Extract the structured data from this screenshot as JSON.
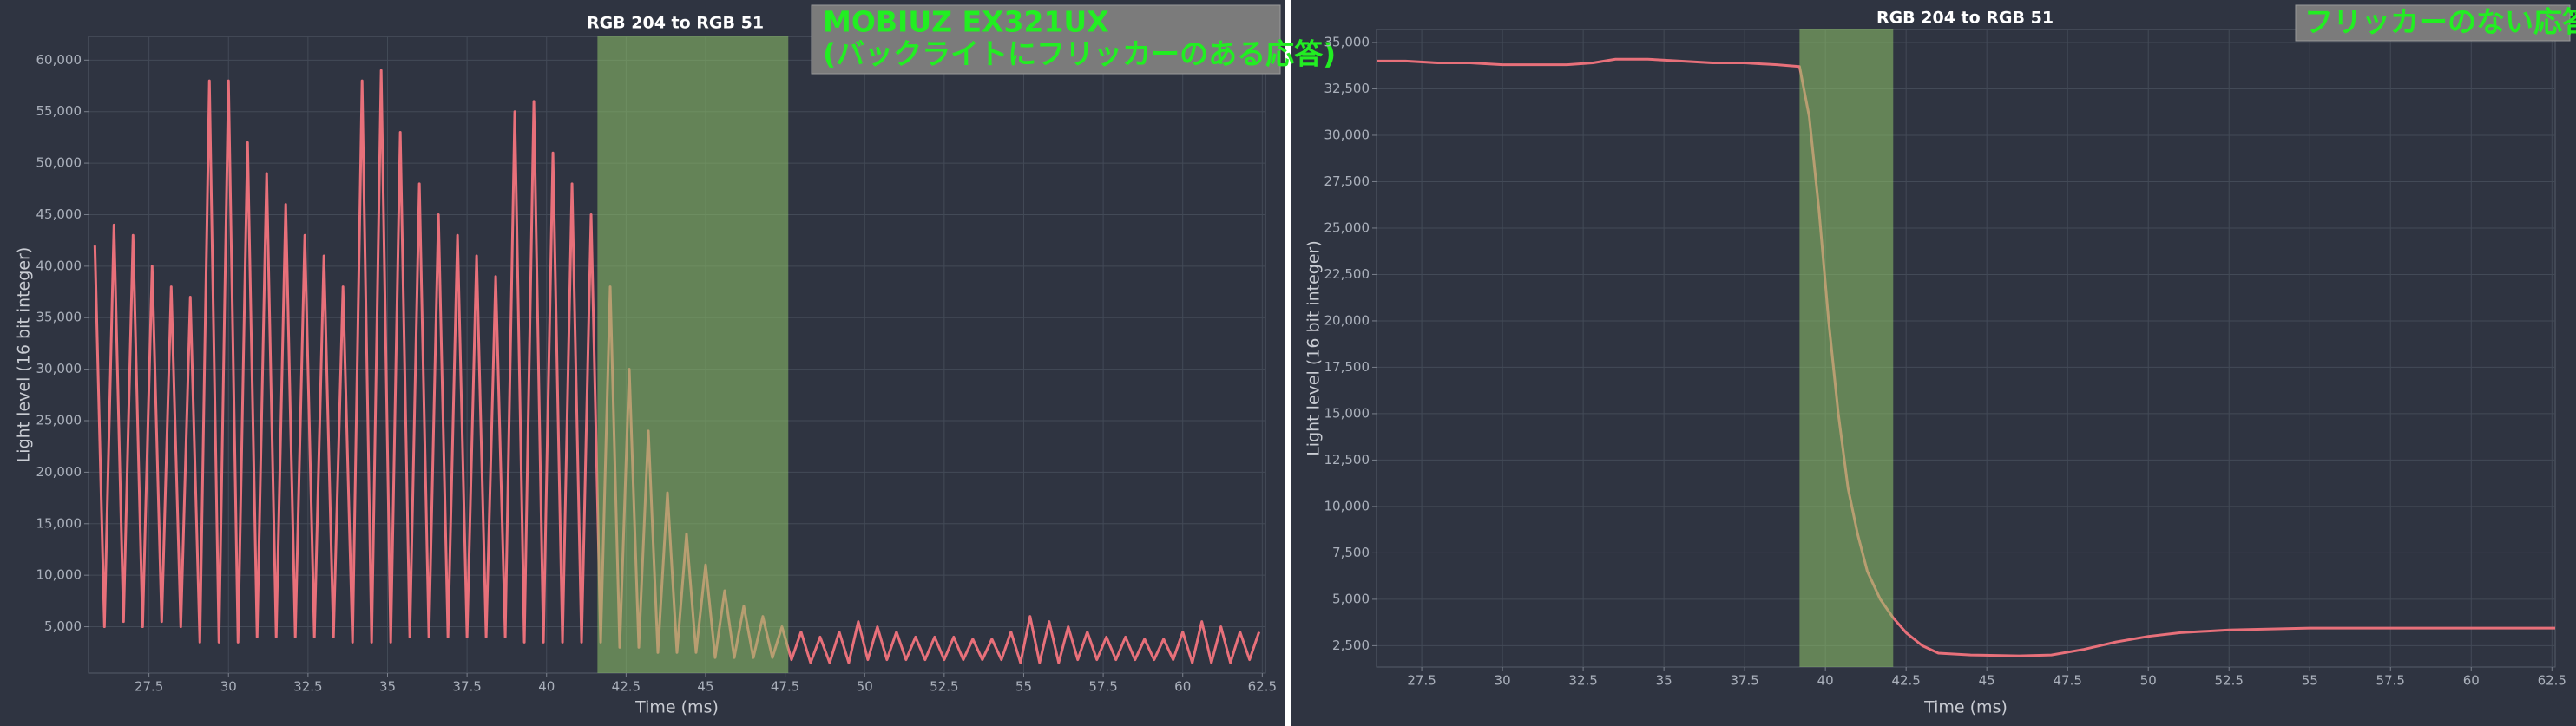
{
  "chart_data": [
    {
      "type": "line",
      "title": "RGB 204 to RGB 51",
      "annotation": [
        "MOBIUZ EX321UX",
        "(バックライトにフリッカーのある応答)"
      ],
      "xlabel": "Time (ms)",
      "ylabel": "Light level (16 bit integer)",
      "color": "#e8707a",
      "highlight": [
        41.6,
        47.6
      ],
      "highlight_color": "#8fc56a",
      "grid": true,
      "xlim": [
        25.6,
        62.6
      ],
      "ylim": [
        500,
        62300
      ],
      "xticks": [
        27.5,
        30,
        32.5,
        35,
        37.5,
        40,
        42.5,
        45,
        47.5,
        50,
        52.5,
        55,
        57.5,
        60,
        62.5
      ],
      "yticks": [
        {
          "value": 5000,
          "label": "5,000"
        },
        {
          "value": 10000,
          "label": "10,000"
        },
        {
          "value": 15000,
          "label": "15,000"
        },
        {
          "value": 20000,
          "label": "20,000"
        },
        {
          "value": 25000,
          "label": "25,000"
        },
        {
          "value": 30000,
          "label": "30,000"
        },
        {
          "value": 35000,
          "label": "35,000"
        },
        {
          "value": 40000,
          "label": "40,000"
        },
        {
          "value": 45000,
          "label": "45,000"
        },
        {
          "value": 50000,
          "label": "50,000"
        },
        {
          "value": 55000,
          "label": "55,000"
        },
        {
          "value": 60000,
          "label": "60,000"
        }
      ],
      "x": [
        25.8,
        26.1,
        26.4,
        26.7,
        27,
        27.3,
        27.6,
        27.9,
        28.2,
        28.5,
        28.8,
        29.1,
        29.4,
        29.7,
        30,
        30.3,
        30.6,
        30.9,
        31.2,
        31.5,
        31.8,
        32.1,
        32.4,
        32.7,
        33,
        33.3,
        33.6,
        33.9,
        34.2,
        34.5,
        34.8,
        35.1,
        35.4,
        35.7,
        36,
        36.3,
        36.6,
        36.9,
        37.2,
        37.5,
        37.8,
        38.1,
        38.4,
        38.7,
        39,
        39.3,
        39.6,
        39.9,
        40.2,
        40.5,
        40.8,
        41.1,
        41.4,
        41.7,
        42,
        42.3,
        42.6,
        42.9,
        43.2,
        43.5,
        43.8,
        44.1,
        44.4,
        44.7,
        45,
        45.3,
        45.6,
        45.9,
        46.2,
        46.5,
        46.8,
        47.1,
        47.4,
        47.7,
        48,
        48.3,
        48.6,
        48.9,
        49.2,
        49.5,
        49.8,
        50.1,
        50.4,
        50.7,
        51,
        51.3,
        51.6,
        51.9,
        52.2,
        52.5,
        52.8,
        53.1,
        53.4,
        53.7,
        54,
        54.3,
        54.6,
        54.9,
        55.2,
        55.5,
        55.8,
        56.1,
        56.4,
        56.7,
        57,
        57.3,
        57.6,
        57.9,
        58.2,
        58.5,
        58.8,
        59.1,
        59.4,
        59.7,
        60,
        60.3,
        60.6,
        60.9,
        61.2,
        61.5,
        61.8,
        62.1,
        62.4
      ],
      "values": [
        42000,
        5000,
        44000,
        5500,
        43000,
        5000,
        40000,
        5500,
        38000,
        5000,
        37000,
        3500,
        58000,
        3500,
        58000,
        3500,
        52000,
        4000,
        49000,
        4000,
        46000,
        4000,
        43000,
        4000,
        41000,
        4000,
        38000,
        3500,
        58000,
        3500,
        59000,
        3500,
        53000,
        4000,
        48000,
        4000,
        45000,
        4000,
        43000,
        4000,
        41000,
        4000,
        39000,
        4000,
        55000,
        3500,
        56000,
        3500,
        51000,
        3500,
        48000,
        3500,
        45000,
        3500,
        38000,
        3000,
        30000,
        3000,
        24000,
        2500,
        18000,
        2500,
        14000,
        2500,
        11000,
        2000,
        8500,
        2000,
        7000,
        2000,
        6000,
        2000,
        5000,
        1800,
        4500,
        1500,
        4000,
        1500,
        4500,
        1500,
        5500,
        1800,
        5000,
        1800,
        4500,
        1800,
        4000,
        1800,
        4000,
        1800,
        4000,
        1800,
        3800,
        1800,
        3800,
        1800,
        4500,
        1500,
        6000,
        1500,
        5500,
        1500,
        5000,
        1800,
        4500,
        1800,
        4000,
        1800,
        4000,
        1800,
        3800,
        1800,
        3800,
        1800,
        4500,
        1500,
        5500,
        1500,
        5000,
        1500,
        4500,
        1800,
        4500
      ]
    },
    {
      "type": "line",
      "title": "RGB 204 to RGB 51",
      "annotation": [
        "フリッカーのない応答"
      ],
      "xlabel": "Time (ms)",
      "ylabel": "Light level (16 bit integer)",
      "color": "#e8707a",
      "highlight": [
        39.2,
        42.1
      ],
      "highlight_color": "#8fc56a",
      "grid": true,
      "xlim": [
        26.1,
        62.6
      ],
      "ylim": [
        1350,
        35700
      ],
      "xticks": [
        27.5,
        30,
        32.5,
        35,
        37.5,
        40,
        42.5,
        45,
        47.5,
        50,
        52.5,
        55,
        57.5,
        60,
        62.5
      ],
      "yticks": [
        {
          "value": 2500,
          "label": "2,500"
        },
        {
          "value": 5000,
          "label": "5,000"
        },
        {
          "value": 7500,
          "label": "7,500"
        },
        {
          "value": 10000,
          "label": "10,000"
        },
        {
          "value": 12500,
          "label": "12,500"
        },
        {
          "value": 15000,
          "label": "15,000"
        },
        {
          "value": 17500,
          "label": "17,500"
        },
        {
          "value": 20000,
          "label": "20,000"
        },
        {
          "value": 22500,
          "label": "22,500"
        },
        {
          "value": 25000,
          "label": "25,000"
        },
        {
          "value": 27500,
          "label": "27,500"
        },
        {
          "value": 30000,
          "label": "30,000"
        },
        {
          "value": 32500,
          "label": "32,500"
        },
        {
          "value": 35000,
          "label": "35,000"
        }
      ],
      "x": [
        26.1,
        27,
        28,
        29,
        30,
        31,
        32,
        32.8,
        33.5,
        34.5,
        35.5,
        36.5,
        37.5,
        38.5,
        39.2,
        39.5,
        39.8,
        40.1,
        40.4,
        40.7,
        41,
        41.3,
        41.7,
        42.1,
        42.5,
        43,
        43.5,
        44.5,
        46,
        47,
        48,
        49,
        50,
        51,
        52.5,
        55,
        57.5,
        60,
        62.6
      ],
      "values": [
        34000,
        34000,
        33900,
        33900,
        33800,
        33800,
        33800,
        33900,
        34100,
        34100,
        34000,
        33900,
        33900,
        33800,
        33700,
        31000,
        26000,
        20000,
        15000,
        11000,
        8500,
        6500,
        5000,
        4000,
        3200,
        2500,
        2100,
        2000,
        1950,
        2000,
        2300,
        2700,
        3000,
        3200,
        3350,
        3450,
        3450,
        3450,
        3450
      ]
    }
  ]
}
